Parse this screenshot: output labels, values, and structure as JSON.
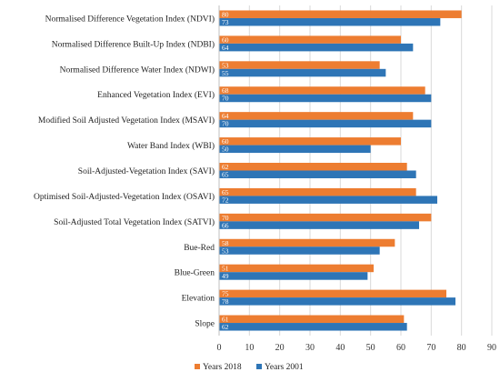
{
  "chart_data": {
    "type": "bar",
    "orientation": "horizontal",
    "categories": [
      "Normalised Difference Vegetation Index (NDVI)",
      "Normalised Difference Built-Up Index (NDBI)",
      "Normalised Difference Water Index (NDWI)",
      "Enhanced Vegetation Index (EVI)",
      "Modified Soil Adjusted Vegetation Index (MSAVI)",
      "Water Band Index (WBI)",
      "Soil-Adjusted-Vegetation Index (SAVI)",
      "Optimised Soil-Adjusted-Vegetation Index (OSAVI)",
      "Soil-Adjusted Total Vegetation Index (SATVI)",
      "Bue-Red",
      "Blue-Green",
      "Elevation",
      "Slope"
    ],
    "series": [
      {
        "name": "Years 2018",
        "color": "#ED7D31",
        "values": [
          80,
          60,
          53,
          68,
          64,
          60,
          62,
          65,
          70,
          58,
          51,
          75,
          61
        ]
      },
      {
        "name": "Years 2001",
        "color": "#2E75B6",
        "values": [
          73,
          64,
          55,
          70,
          70,
          50,
          65,
          72,
          66,
          53,
          49,
          78,
          62
        ]
      }
    ],
    "xlim": [
      0,
      90
    ],
    "xticks": [
      "0",
      "10",
      "20",
      "30",
      "40",
      "50",
      "60",
      "70",
      "80",
      "90"
    ],
    "grid": true,
    "legend_position": "bottom",
    "title": "",
    "xlabel": "",
    "ylabel": ""
  }
}
